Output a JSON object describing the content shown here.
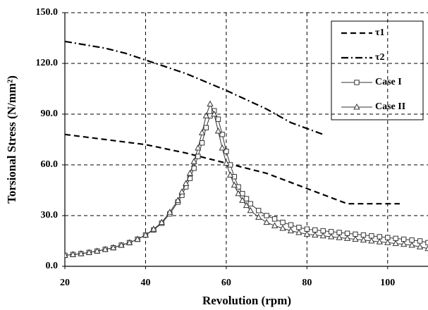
{
  "chart_data": {
    "type": "line",
    "x_label": "Revolution (rpm)",
    "y_label": "Torsional Stress (N/mm²)",
    "xlim": [
      20,
      110
    ],
    "xticks": [
      20,
      40,
      60,
      80,
      100
    ],
    "ylim": [
      0,
      150
    ],
    "yticks": [
      {
        "value": 0,
        "label": "0.0"
      },
      {
        "value": 30,
        "label": "30.0"
      },
      {
        "value": 60,
        "label": "60.0"
      },
      {
        "value": 90,
        "label": "90.0"
      },
      {
        "value": 120,
        "label": "120.0"
      },
      {
        "value": 150,
        "label": "150.0"
      }
    ],
    "grid": true,
    "legend": "top-right",
    "series": [
      {
        "name": "τ1",
        "color": "#000000",
        "style": "dashed",
        "x": [
          20,
          30,
          40,
          50,
          60,
          70,
          80,
          90,
          103
        ],
        "values": [
          78,
          75,
          72,
          67,
          61,
          55,
          46,
          37,
          37
        ]
      },
      {
        "name": "τ2",
        "color": "#000000",
        "style": "dashdot",
        "x": [
          20,
          30,
          35,
          40,
          50,
          60,
          70,
          76,
          84
        ],
        "values": [
          133,
          129,
          126,
          122,
          114,
          104,
          93,
          85,
          78
        ]
      },
      {
        "name": "Case I",
        "color": "#333333",
        "style": "solid",
        "marker": "square",
        "x": [
          20,
          22,
          24,
          26,
          28,
          30,
          32,
          34,
          36,
          38,
          40,
          42,
          44,
          46,
          48,
          49,
          50,
          51,
          52,
          53,
          54,
          55,
          56,
          57,
          58,
          59,
          60,
          61,
          62,
          63,
          64,
          65,
          66,
          68,
          70,
          72,
          74,
          76,
          78,
          80,
          82,
          84,
          86,
          88,
          90,
          92,
          94,
          96,
          98,
          100,
          102,
          104,
          106,
          108,
          110
        ],
        "values": [
          6.5,
          7,
          7.5,
          8.2,
          9,
          10,
          11,
          12.5,
          14,
          16,
          18.5,
          21.5,
          25.5,
          31,
          38,
          42,
          47,
          52,
          58,
          65,
          73,
          82,
          89,
          92,
          87,
          78,
          68,
          60,
          53,
          47,
          43,
          40,
          37,
          33,
          30,
          28,
          26,
          24.5,
          23,
          22,
          21.5,
          21,
          20.5,
          20,
          19.5,
          19,
          18.5,
          18,
          17.5,
          17,
          16.5,
          16,
          15.5,
          15,
          14
        ]
      },
      {
        "name": "Case II",
        "color": "#333333",
        "style": "solid",
        "marker": "triangle",
        "x": [
          20,
          22,
          24,
          26,
          28,
          30,
          32,
          34,
          36,
          38,
          40,
          42,
          44,
          46,
          48,
          49,
          50,
          51,
          52,
          53,
          54,
          55,
          56,
          57,
          58,
          59,
          60,
          61,
          62,
          63,
          64,
          65,
          66,
          68,
          70,
          72,
          74,
          76,
          78,
          80,
          82,
          84,
          86,
          88,
          90,
          92,
          94,
          96,
          98,
          100,
          102,
          104,
          106,
          108,
          110
        ],
        "values": [
          6.5,
          7,
          7.5,
          8.2,
          9,
          10,
          11,
          12.5,
          14,
          16,
          18.5,
          22,
          26,
          32,
          39,
          44,
          49,
          55,
          62,
          70,
          79,
          89,
          96,
          90,
          80,
          70,
          61,
          54,
          48,
          43,
          39,
          36,
          33,
          29,
          26,
          24,
          22.5,
          21,
          20,
          19,
          18.5,
          18,
          17.5,
          17,
          16.5,
          16,
          15.5,
          15,
          14.5,
          14,
          13.5,
          13,
          12.5,
          11.5,
          10.5
        ]
      }
    ]
  }
}
